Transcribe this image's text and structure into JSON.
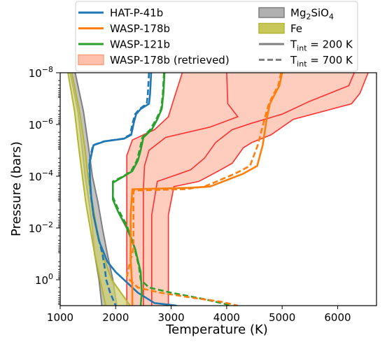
{
  "chart_data": {
    "type": "line",
    "xlabel": "Temperature (K)",
    "ylabel": "Pressure (bars)",
    "xlim": [
      1000,
      6700
    ],
    "ylim_log10": [
      -8,
      1
    ],
    "y_scale": "log",
    "y_inverted": true,
    "x_ticks": [
      1000,
      2000,
      3000,
      4000,
      5000,
      6000
    ],
    "x_tick_labels": [
      "1000",
      "2000",
      "3000",
      "4000",
      "5000",
      "6000"
    ],
    "y_ticks_log10": [
      -8,
      -6,
      -4,
      -2,
      0
    ],
    "y_tick_labels": [
      {
        "base": "10",
        "exp": "−8"
      },
      {
        "base": "10",
        "exp": "−6"
      },
      {
        "base": "10",
        "exp": "−4"
      },
      {
        "base": "10",
        "exp": "−2"
      },
      {
        "base": "10",
        "exp": "0"
      }
    ],
    "legend_position": "top (outside, two columns)",
    "legend": [
      {
        "key": "hat",
        "kind": "line",
        "color": "#1f77b4",
        "text": "HAT-P-41b"
      },
      {
        "key": "w178",
        "kind": "line",
        "color": "#ff7f0e",
        "text": "WASP-178b"
      },
      {
        "key": "w121",
        "kind": "line",
        "color": "#2ca02c",
        "text": "WASP-121b"
      },
      {
        "key": "ret",
        "kind": "band",
        "color": "#ffc0ac",
        "text": "WASP-178b (retrieved)"
      },
      {
        "key": "mg",
        "kind": "band",
        "color": "#b0b0b0",
        "text": "Mg",
        "sub1": "2",
        "mid": "SiO",
        "sub2": "4"
      },
      {
        "key": "fe",
        "kind": "band",
        "color": "#c8c85a",
        "text": "Fe"
      },
      {
        "key": "t200",
        "kind": "line",
        "color": "#808080",
        "text": "T",
        "sub1": "int",
        "mid": " = 200 K"
      },
      {
        "key": "t700",
        "kind": "dash",
        "color": "#808080",
        "text": "T",
        "sub1": "int",
        "mid": " = 700 K"
      }
    ],
    "colors": {
      "hat": "#1f77b4",
      "wasp178": "#ff7f0e",
      "wasp121": "#2ca02c",
      "retrieved_fill": "#ffcdbd",
      "retrieved_edge": "#ff3030",
      "mg_fill": "#b8b8b8",
      "mg_edge": "#7f7f7f",
      "fe_fill": "#d0d070",
      "fe_edge": "#b5b530"
    },
    "series": [
      {
        "name": "HAT-P-41b",
        "color": "#1f77b4",
        "dash": false,
        "points": [
          [
            2640,
            -8
          ],
          [
            2620,
            -7.2
          ],
          [
            2600,
            -6.8
          ],
          [
            2450,
            -6.6
          ],
          [
            2370,
            -6.4
          ],
          [
            2330,
            -6.1
          ],
          [
            2280,
            -5.6
          ],
          [
            2150,
            -5.45
          ],
          [
            1800,
            -5.35
          ],
          [
            1600,
            -5.2
          ],
          [
            1560,
            -4.8
          ],
          [
            1530,
            -4.5
          ],
          [
            1540,
            -3.8
          ],
          [
            1560,
            -3.2
          ],
          [
            1600,
            -2.5
          ],
          [
            1700,
            -1.5
          ],
          [
            1850,
            -0.7
          ],
          [
            2000,
            -0.3
          ],
          [
            2200,
            0.1
          ],
          [
            2400,
            0.5
          ],
          [
            2700,
            0.9
          ],
          [
            3100,
            1
          ]
        ]
      },
      {
        "name": "HAT-P-41b",
        "color": "#1f77b4",
        "dash": true,
        "points": [
          [
            2600,
            -8
          ],
          [
            2580,
            -7.2
          ],
          [
            2560,
            -6.8
          ],
          [
            2430,
            -6.6
          ],
          [
            2350,
            -6.4
          ],
          [
            2310,
            -6.1
          ],
          [
            2260,
            -5.6
          ],
          [
            2130,
            -5.45
          ],
          [
            1790,
            -5.35
          ],
          [
            1590,
            -5.2
          ],
          [
            1550,
            -4.8
          ],
          [
            1525,
            -4.5
          ],
          [
            1535,
            -3.8
          ],
          [
            1555,
            -3.2
          ],
          [
            1600,
            -2.5
          ],
          [
            1680,
            -1.7
          ],
          [
            1760,
            -1
          ],
          [
            1800,
            -0.5
          ],
          [
            1830,
            0
          ],
          [
            1900,
            0.5
          ],
          [
            2000,
            1
          ]
        ]
      },
      {
        "name": "WASP-121b",
        "color": "#2ca02c",
        "dash": false,
        "points": [
          [
            2880,
            -8
          ],
          [
            2860,
            -7.2
          ],
          [
            2830,
            -6.6
          ],
          [
            2750,
            -6.2
          ],
          [
            2650,
            -5.8
          ],
          [
            2500,
            -5.5
          ],
          [
            2450,
            -5
          ],
          [
            2400,
            -4.6
          ],
          [
            2300,
            -4.2
          ],
          [
            2150,
            -4
          ],
          [
            1950,
            -3.75
          ],
          [
            1950,
            -3.1
          ],
          [
            2050,
            -2.6
          ],
          [
            2200,
            -2
          ],
          [
            2350,
            -1.2
          ],
          [
            2450,
            -0.3
          ],
          [
            2470,
            0.5
          ],
          [
            2450,
            1
          ]
        ]
      },
      {
        "name": "WASP-121b",
        "color": "#2ca02c",
        "dash": true,
        "points": [
          [
            2870,
            -8
          ],
          [
            2850,
            -7.2
          ],
          [
            2820,
            -6.6
          ],
          [
            2730,
            -6.2
          ],
          [
            2620,
            -5.8
          ],
          [
            2480,
            -5.5
          ],
          [
            2430,
            -5
          ],
          [
            2380,
            -4.6
          ],
          [
            2280,
            -4.2
          ],
          [
            2140,
            -4
          ],
          [
            1950,
            -3.8
          ],
          [
            1950,
            -3.2
          ],
          [
            2050,
            -2.7
          ],
          [
            2200,
            -2.1
          ],
          [
            2330,
            -1.3
          ],
          [
            2420,
            -0.5
          ],
          [
            2450,
            0
          ],
          [
            2600,
            0.3
          ],
          [
            3000,
            0.5
          ],
          [
            3600,
            0.75
          ],
          [
            4100,
            1
          ]
        ]
      },
      {
        "name": "WASP-178b",
        "color": "#ff7f0e",
        "dash": false,
        "points": [
          [
            5000,
            -8
          ],
          [
            4950,
            -7.5
          ],
          [
            4850,
            -7.1
          ],
          [
            4780,
            -6.8
          ],
          [
            4720,
            -6.2
          ],
          [
            4650,
            -5.2
          ],
          [
            4550,
            -4.4
          ],
          [
            4300,
            -4.1
          ],
          [
            3700,
            -3.6
          ],
          [
            3300,
            -3.55
          ],
          [
            2300,
            -3.5
          ],
          [
            2270,
            -2.5
          ],
          [
            2270,
            -0.8
          ],
          [
            2300,
            0.3
          ],
          [
            2300,
            1
          ]
        ]
      },
      {
        "name": "WASP-178b",
        "color": "#ff7f0e",
        "dash": true,
        "points": [
          [
            4980,
            -8
          ],
          [
            4930,
            -7.5
          ],
          [
            4830,
            -7.1
          ],
          [
            4760,
            -6.8
          ],
          [
            4680,
            -6.2
          ],
          [
            4560,
            -5.2
          ],
          [
            4420,
            -4.4
          ],
          [
            4150,
            -4.1
          ],
          [
            3600,
            -3.6
          ],
          [
            3250,
            -3.5
          ],
          [
            2320,
            -3.45
          ],
          [
            2320,
            -2.5
          ],
          [
            2320,
            -1.2
          ],
          [
            2250,
            -0.6
          ],
          [
            2200,
            -0.1
          ],
          [
            2400,
            0.3
          ],
          [
            2800,
            0.5
          ],
          [
            3400,
            0.7
          ],
          [
            3900,
            0.85
          ],
          [
            4200,
            1
          ]
        ]
      }
    ],
    "bands": [
      {
        "name": "WASP-178b (retrieved)",
        "left": [
          [
            3200,
            -8
          ],
          [
            3050,
            -7
          ],
          [
            2950,
            -6.3
          ],
          [
            2700,
            -5.8
          ],
          [
            2300,
            -5.4
          ],
          [
            2200,
            -4.8
          ],
          [
            2200,
            -4
          ],
          [
            2200,
            -3.6
          ],
          [
            2200,
            -2
          ],
          [
            2200,
            0
          ],
          [
            2200,
            1
          ]
        ],
        "right": [
          [
            6550,
            -8
          ],
          [
            6400,
            -7.2
          ],
          [
            6250,
            -6.8
          ],
          [
            5200,
            -6.2
          ],
          [
            4800,
            -5.6
          ],
          [
            4450,
            -5.3
          ],
          [
            4300,
            -5.1
          ],
          [
            4100,
            -4.5
          ],
          [
            3850,
            -4.2
          ],
          [
            3500,
            -3.8
          ],
          [
            3050,
            -3.6
          ],
          [
            2950,
            -2.5
          ],
          [
            2950,
            -0.5
          ],
          [
            2950,
            1
          ]
        ],
        "inner": [
          [
            [
              4000,
              -8
            ],
            [
              4020,
              -6.8
            ],
            [
              4200,
              -6.3
            ],
            [
              3700,
              -5.9
            ],
            [
              2900,
              -5.5
            ],
            [
              2600,
              -5
            ],
            [
              2520,
              -4.4
            ],
            [
              2500,
              -3.5
            ],
            [
              2500,
              -1
            ],
            [
              2500,
              1
            ]
          ],
          [
            [
              6300,
              -8
            ],
            [
              6200,
              -7.5
            ],
            [
              5500,
              -6.9
            ],
            [
              5000,
              -6.4
            ],
            [
              4450,
              -6.05
            ],
            [
              4100,
              -5.8
            ],
            [
              3800,
              -5.3
            ],
            [
              3600,
              -4.7
            ],
            [
              3350,
              -4.25
            ],
            [
              2750,
              -3.8
            ],
            [
              2650,
              -2.5
            ],
            [
              2650,
              1
            ]
          ]
        ]
      },
      {
        "name": "Mg2SiO4",
        "left": [
          [
            1180,
            -8
          ],
          [
            1320,
            -6.5
          ],
          [
            1400,
            -5
          ],
          [
            1450,
            -4
          ],
          [
            1520,
            -3
          ],
          [
            1580,
            -2
          ],
          [
            1620,
            -1
          ],
          [
            1700,
            0
          ],
          [
            1750,
            1
          ]
        ],
        "right": [
          [
            1270,
            -8
          ],
          [
            1420,
            -6.5
          ],
          [
            1520,
            -5
          ],
          [
            1580,
            -4
          ],
          [
            1680,
            -3
          ],
          [
            1760,
            -2
          ],
          [
            1850,
            -1
          ],
          [
            1950,
            0
          ],
          [
            2020,
            1
          ]
        ]
      },
      {
        "name": "Fe",
        "left": [
          [
            1140,
            -8
          ],
          [
            1260,
            -6.5
          ],
          [
            1340,
            -5
          ],
          [
            1400,
            -4
          ],
          [
            1460,
            -3
          ],
          [
            1540,
            -2
          ],
          [
            1620,
            -1
          ],
          [
            1720,
            0
          ],
          [
            1820,
            1
          ]
        ],
        "right": [
          [
            1210,
            -8
          ],
          [
            1350,
            -6.5
          ],
          [
            1450,
            -5
          ],
          [
            1500,
            -4
          ],
          [
            1580,
            -3
          ],
          [
            1660,
            -2
          ],
          [
            1760,
            -1
          ],
          [
            1930,
            0
          ],
          [
            2260,
            1
          ]
        ]
      }
    ]
  }
}
